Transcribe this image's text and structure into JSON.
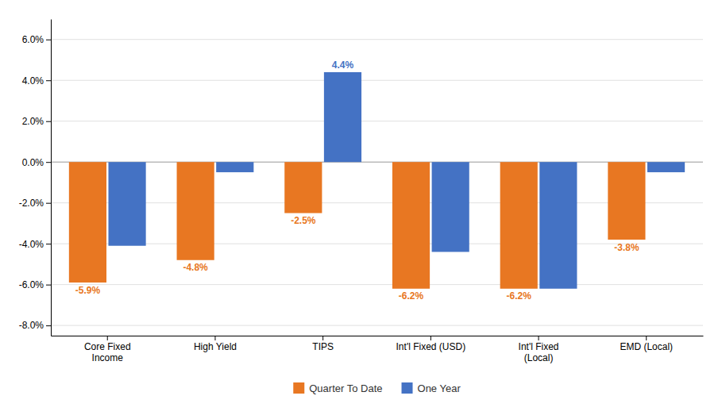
{
  "chart_data": {
    "type": "bar",
    "categories": [
      "Core Fixed\nIncome",
      "High Yield",
      "TIPS",
      "Int'l Fixed (USD)",
      "Int'l Fixed\n(Local)",
      "EMD (Local)"
    ],
    "series": [
      {
        "name": "Quarter To Date",
        "color": "#E87722",
        "values": [
          -5.9,
          -4.8,
          -2.5,
          -6.2,
          -6.2,
          -3.8
        ],
        "value_labels": [
          "-5.9%",
          "-4.8%",
          "-2.5%",
          "-6.2%",
          "-6.2%",
          "-3.8%"
        ]
      },
      {
        "name": "One Year",
        "color": "#4472C4",
        "values": [
          -4.1,
          -0.5,
          4.4,
          -4.4,
          -6.2,
          -0.5
        ],
        "value_labels": [
          null,
          null,
          "4.4%",
          null,
          null,
          null
        ]
      }
    ],
    "ylim": [
      -8.5,
      7.0
    ],
    "yticks": [
      {
        "value": -8.0,
        "label": "-8.0%"
      },
      {
        "value": -6.0,
        "label": "-6.0%"
      },
      {
        "value": -4.0,
        "label": "-4.0%"
      },
      {
        "value": -2.0,
        "label": "-2.0%"
      },
      {
        "value": 0.0,
        "label": "0.0%"
      },
      {
        "value": 2.0,
        "label": "2.0%"
      },
      {
        "value": 4.0,
        "label": "4.0%"
      },
      {
        "value": 6.0,
        "label": "6.0%"
      }
    ],
    "grid": true,
    "data_labels": true,
    "legend": "bottom"
  }
}
